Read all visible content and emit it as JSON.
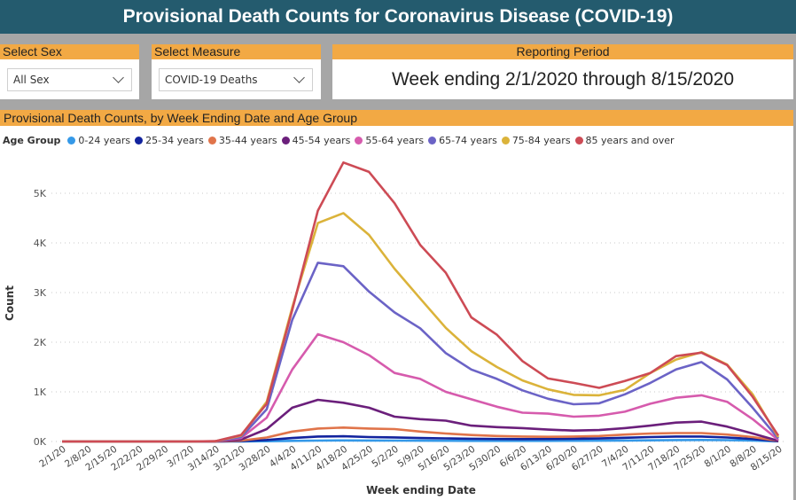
{
  "header": {
    "title": "Provisional Death Counts for Coronavirus Disease (COVID-19)"
  },
  "filters": {
    "sex": {
      "label": "Select Sex",
      "value": "All Sex"
    },
    "measure": {
      "label": "Select Measure",
      "value": "COVID-19 Deaths"
    },
    "period": {
      "label": "Reporting Period",
      "value": "Week ending 2/1/2020 through 8/15/2020"
    }
  },
  "chart_panel": {
    "title": "Provisional Death Counts, by Week Ending Date and Age Group",
    "legend_title": "Age Group"
  },
  "chart_data": {
    "type": "line",
    "title": "Provisional Death Counts, by Week Ending Date and Age Group",
    "xlabel": "Week ending Date",
    "ylabel": "Count",
    "ylim": [
      0,
      5800
    ],
    "yticks": [
      0,
      1000,
      2000,
      3000,
      4000,
      5000
    ],
    "ytick_labels": [
      "0K",
      "1K",
      "2K",
      "3K",
      "4K",
      "5K"
    ],
    "grid": true,
    "legend_placement": "top-left",
    "x": [
      "2/1/20",
      "2/8/20",
      "2/15/20",
      "2/22/20",
      "2/29/20",
      "3/7/20",
      "3/14/20",
      "3/21/20",
      "3/28/20",
      "4/4/20",
      "4/11/20",
      "4/18/20",
      "4/25/20",
      "5/2/20",
      "5/9/20",
      "5/16/20",
      "5/23/20",
      "5/30/20",
      "6/6/20",
      "6/13/20",
      "6/20/20",
      "6/27/20",
      "7/4/20",
      "7/11/20",
      "7/18/20",
      "7/25/20",
      "8/1/20",
      "8/8/20",
      "8/15/20"
    ],
    "series": [
      {
        "name": "0-24 years",
        "color": "#3599e8",
        "values": [
          0,
          0,
          0,
          0,
          0,
          0,
          0,
          2,
          5,
          12,
          18,
          22,
          20,
          18,
          16,
          14,
          13,
          12,
          12,
          12,
          14,
          16,
          20,
          24,
          28,
          30,
          26,
          18,
          3
        ]
      },
      {
        "name": "25-34 years",
        "color": "#12239e",
        "values": [
          0,
          0,
          0,
          0,
          0,
          0,
          1,
          8,
          30,
          70,
          100,
          105,
          90,
          82,
          70,
          62,
          55,
          50,
          48,
          50,
          55,
          60,
          75,
          90,
          100,
          100,
          80,
          50,
          5
        ]
      },
      {
        "name": "35-44 years",
        "color": "#e0744a",
        "values": [
          0,
          0,
          0,
          0,
          0,
          0,
          2,
          18,
          80,
          200,
          260,
          280,
          260,
          250,
          200,
          160,
          130,
          110,
          100,
          95,
          100,
          110,
          140,
          160,
          170,
          170,
          140,
          90,
          10
        ]
      },
      {
        "name": "45-54 years",
        "color": "#6b1f7b",
        "values": [
          0,
          0,
          0,
          0,
          0,
          0,
          3,
          40,
          250,
          680,
          840,
          780,
          680,
          500,
          450,
          420,
          320,
          290,
          270,
          240,
          220,
          230,
          270,
          320,
          380,
          400,
          300,
          160,
          15
        ]
      },
      {
        "name": "55-64 years",
        "color": "#d65bad",
        "values": [
          0,
          0,
          0,
          0,
          0,
          0,
          5,
          70,
          480,
          1450,
          2160,
          2000,
          1740,
          1380,
          1260,
          1000,
          850,
          700,
          580,
          560,
          500,
          520,
          600,
          760,
          880,
          930,
          800,
          450,
          30
        ]
      },
      {
        "name": "65-74 years",
        "color": "#6b63c6",
        "values": [
          0,
          0,
          0,
          0,
          0,
          0,
          5,
          90,
          650,
          2450,
          3600,
          3530,
          3020,
          2600,
          2280,
          1780,
          1450,
          1260,
          1030,
          860,
          750,
          770,
          950,
          1180,
          1450,
          1600,
          1250,
          680,
          60
        ]
      },
      {
        "name": "75-84 years",
        "color": "#dbb33a",
        "values": [
          0,
          0,
          0,
          0,
          0,
          0,
          6,
          120,
          800,
          2700,
          4400,
          4600,
          4160,
          3480,
          2880,
          2290,
          1820,
          1500,
          1230,
          1050,
          940,
          930,
          1040,
          1380,
          1650,
          1800,
          1550,
          950,
          90
        ]
      },
      {
        "name": "85 years and over",
        "color": "#cd4b55",
        "values": [
          0,
          0,
          0,
          0,
          0,
          0,
          8,
          130,
          760,
          2650,
          4650,
          5620,
          5430,
          4800,
          3960,
          3400,
          2500,
          2150,
          1620,
          1270,
          1180,
          1080,
          1220,
          1380,
          1720,
          1790,
          1540,
          900,
          120
        ]
      }
    ]
  }
}
